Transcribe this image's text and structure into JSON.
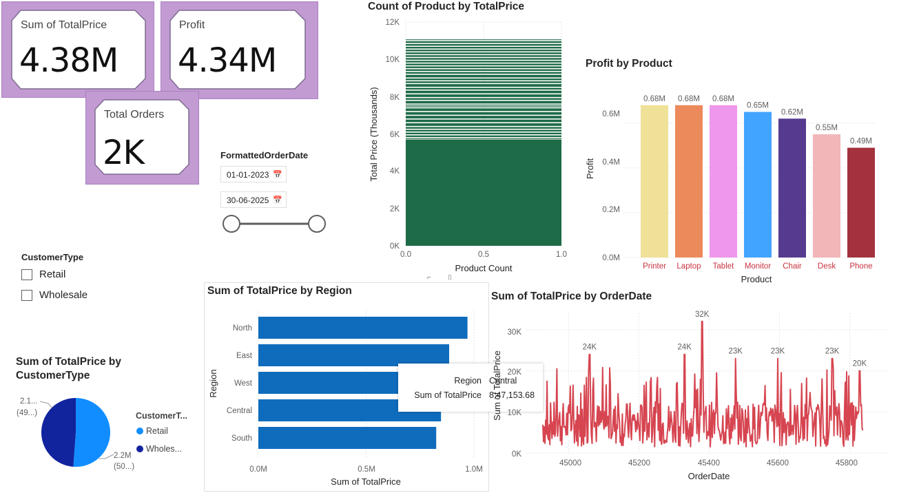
{
  "kpi": {
    "total_price": {
      "label": "Sum of TotalPrice",
      "value": "4.38M"
    },
    "profit": {
      "label": "Profit",
      "value": "4.34M"
    },
    "orders": {
      "label": "Total Orders",
      "value": "2K"
    }
  },
  "date_slicer": {
    "title": "FormattedOrderDate",
    "start": "01-01-2023",
    "end": "30-06-2025",
    "icon": "calendar-icon"
  },
  "customer_slicer": {
    "title": "CustomerType",
    "options": [
      "Retail",
      "Wholesale"
    ]
  },
  "colors": {
    "accent_blue": "#118dff",
    "dark_blue": "#12239e",
    "region_bar": "#0f6cbd",
    "histogram_green": "#1e6b47",
    "line_red": "#d64550"
  },
  "charts": {
    "count_by_price": {
      "title": "Count of Product by TotalPrice",
      "ylabel": "Total Price (Thousands)",
      "xlabel": "Product Count",
      "yticks": [
        "12K",
        "10K",
        "8K",
        "6K",
        "4K",
        "2K",
        "0K"
      ],
      "xticks": [
        "0.0",
        "0.5",
        "1.0"
      ]
    },
    "profit_by_product": {
      "title": "Profit by Product",
      "ylabel": "Profit",
      "xlabel": "Product",
      "yticks": [
        "0.6M",
        "0.4M",
        "0.2M",
        "0.0M"
      ]
    },
    "price_by_region": {
      "title": "Sum of TotalPrice by Region",
      "ylabel": "Region",
      "xlabel": "Sum of TotalPrice",
      "xticks": [
        "0.0M",
        "0.5M",
        "1.0M"
      ],
      "tooltip": {
        "k1": "Region",
        "v1": "Central",
        "k2": "Sum of TotalPrice",
        "v2": "8,47,153.68"
      }
    },
    "price_by_customer": {
      "title": "Sum of TotalPrice by CustomerType",
      "legend_title": "CustomerT...",
      "legend": [
        "Retail",
        "Wholes..."
      ],
      "label_left_1": "2.1...",
      "label_left_2": "(49...)",
      "label_right_1": "2.2M",
      "label_right_2": "(50...)"
    },
    "price_by_date": {
      "title": "Sum of TotalPrice by OrderDate",
      "ylabel": "Sum of TotalPrice",
      "xlabel": "OrderDate",
      "yticks": [
        "30K",
        "20K",
        "10K",
        "0K"
      ],
      "xticks": [
        "45000",
        "45200",
        "45400",
        "45600",
        "45800"
      ]
    }
  },
  "chart_data": [
    {
      "type": "bar",
      "title": "Count of Product by TotalPrice",
      "orientation": "horizontal",
      "xlabel": "Product Count",
      "ylabel": "Total Price (Thousands)",
      "xlim": [
        0,
        1
      ],
      "ylim": [
        0,
        12000
      ],
      "note_values": "dense bars of count 1 for each TotalPrice from 0 to ~11.1K"
    },
    {
      "type": "bar",
      "title": "Profit by Product",
      "xlabel": "Product",
      "ylabel": "Profit",
      "categories": [
        "Printer",
        "Laptop",
        "Tablet",
        "Monitor",
        "Chair",
        "Desk",
        "Phone"
      ],
      "values": [
        680000,
        680000,
        680000,
        650000,
        620000,
        550000,
        490000
      ],
      "data_labels": [
        "0.68M",
        "0.68M",
        "0.68M",
        "0.65M",
        "0.62M",
        "0.55M",
        "0.49M"
      ],
      "colors": [
        "#f0e199",
        "#ec8a5c",
        "#ef97ec",
        "#41a4ff",
        "#553a8f",
        "#f2b5b8",
        "#a3323d"
      ],
      "ylim": [
        0,
        750000
      ]
    },
    {
      "type": "bar",
      "title": "Sum of TotalPrice by Region",
      "orientation": "horizontal",
      "xlabel": "Sum of TotalPrice",
      "ylabel": "Region",
      "categories": [
        "North",
        "East",
        "West",
        "Central",
        "South"
      ],
      "values": [
        970000,
        885000,
        870000,
        847153.68,
        825000
      ],
      "xlim": [
        0,
        1050000
      ]
    },
    {
      "type": "pie",
      "title": "Sum of TotalPrice by CustomerType",
      "categories": [
        "Retail",
        "Wholesale"
      ],
      "values": [
        2.2,
        2.1
      ],
      "legend_placement": "right"
    },
    {
      "type": "line",
      "title": "Sum of TotalPrice by OrderDate",
      "xlabel": "OrderDate",
      "ylabel": "Sum of TotalPrice",
      "xlim": [
        44927,
        45838
      ],
      "ylim": [
        0,
        34000
      ],
      "peaks": [
        {
          "x": 45060,
          "y": 24000,
          "label": "24K"
        },
        {
          "x": 45330,
          "y": 24000,
          "label": "24K"
        },
        {
          "x": 45380,
          "y": 32000,
          "label": "32K"
        },
        {
          "x": 45475,
          "y": 23000,
          "label": "23K"
        },
        {
          "x": 45595,
          "y": 23000,
          "label": "23K"
        },
        {
          "x": 45750,
          "y": 23000,
          "label": "23K"
        },
        {
          "x": 45828,
          "y": 20000,
          "label": "20K"
        }
      ]
    }
  ]
}
